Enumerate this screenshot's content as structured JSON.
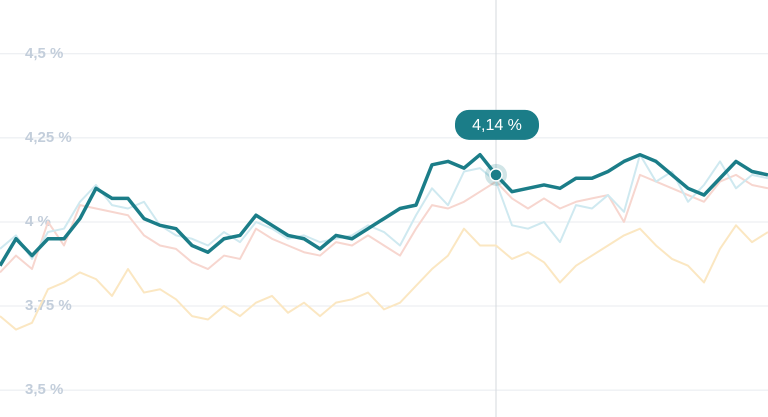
{
  "chart_data": {
    "type": "line",
    "categories": [
      null,
      null,
      null,
      null,
      null,
      null,
      null,
      null,
      null,
      null,
      null,
      null,
      null,
      null,
      null,
      null,
      null,
      null,
      null,
      null,
      null,
      null,
      null,
      null,
      null,
      null,
      null,
      null,
      null,
      null,
      null,
      null,
      null,
      null,
      null,
      null,
      null,
      null,
      null,
      null,
      null,
      null,
      null,
      null,
      null,
      null,
      null,
      null,
      null
    ],
    "series": [
      {
        "color": "#1b7d88",
        "values": [
          3.87,
          3.95,
          3.9,
          3.95,
          3.95,
          4.01,
          4.1,
          4.07,
          4.07,
          4.01,
          3.99,
          3.98,
          3.93,
          3.91,
          3.95,
          3.96,
          4.02,
          3.99,
          3.96,
          3.95,
          3.92,
          3.96,
          3.95,
          3.98,
          4.01,
          4.04,
          4.05,
          4.17,
          4.18,
          4.16,
          4.2,
          4.14,
          4.09,
          4.1,
          4.11,
          4.1,
          4.13,
          4.13,
          4.15,
          4.18,
          4.2,
          4.18,
          4.14,
          4.1,
          4.08,
          4.13,
          4.18,
          4.15,
          4.14
        ],
        "value_labels": [
          null,
          null,
          null,
          null,
          null,
          null,
          null,
          null,
          null,
          null,
          null,
          null,
          null,
          null,
          null,
          null,
          null,
          null,
          null,
          null,
          null,
          null,
          null,
          null,
          null,
          null,
          null,
          null,
          null,
          null,
          null,
          "4,14 %",
          null,
          null,
          null,
          null,
          null,
          null,
          null,
          null,
          null,
          null,
          null,
          null,
          null,
          null,
          null,
          null,
          null
        ]
      },
      {
        "color": "#cfe9f0",
        "values": [
          3.92,
          3.96,
          3.89,
          3.97,
          3.98,
          4.06,
          4.11,
          4.05,
          4.04,
          4.06,
          3.99,
          3.96,
          3.95,
          3.93,
          3.97,
          3.94,
          4.0,
          3.98,
          3.95,
          3.96,
          3.94,
          3.95,
          3.96,
          3.99,
          3.97,
          3.93,
          4.02,
          4.1,
          4.05,
          4.15,
          4.16,
          4.12,
          3.99,
          3.98,
          4.0,
          3.94,
          4.05,
          4.04,
          4.08,
          4.03,
          4.2,
          4.12,
          4.15,
          4.06,
          4.11,
          4.18,
          4.1,
          4.14,
          4.13
        ]
      },
      {
        "color": "#f7d6cf",
        "values": [
          3.85,
          3.9,
          3.86,
          4.0,
          3.93,
          4.05,
          4.04,
          4.03,
          4.02,
          3.96,
          3.93,
          3.92,
          3.88,
          3.86,
          3.9,
          3.89,
          3.98,
          3.95,
          3.93,
          3.91,
          3.9,
          3.94,
          3.93,
          3.96,
          3.93,
          3.9,
          3.98,
          4.05,
          4.04,
          4.06,
          4.09,
          4.12,
          4.07,
          4.04,
          4.07,
          4.04,
          4.06,
          4.07,
          4.08,
          4.0,
          4.14,
          4.12,
          4.1,
          4.08,
          4.06,
          4.12,
          4.14,
          4.11,
          4.1
        ]
      },
      {
        "color": "#fbe7c2",
        "values": [
          3.72,
          3.68,
          3.7,
          3.8,
          3.82,
          3.85,
          3.83,
          3.78,
          3.86,
          3.79,
          3.8,
          3.77,
          3.72,
          3.71,
          3.75,
          3.72,
          3.76,
          3.78,
          3.73,
          3.76,
          3.72,
          3.76,
          3.77,
          3.79,
          3.74,
          3.76,
          3.81,
          3.86,
          3.9,
          3.98,
          3.93,
          3.93,
          3.89,
          3.91,
          3.88,
          3.82,
          3.87,
          3.9,
          3.93,
          3.96,
          3.98,
          3.93,
          3.89,
          3.87,
          3.82,
          3.92,
          3.99,
          3.94,
          3.97
        ]
      }
    ],
    "ylim": [
      3.42,
      4.66
    ],
    "yticks": [
      {
        "value": 3.5,
        "label": "3,5 %"
      },
      {
        "value": 3.75,
        "label": "3,75 %"
      },
      {
        "value": 4,
        "label": "4 %"
      },
      {
        "value": 4.25,
        "label": "4,25 %"
      },
      {
        "value": 4.5,
        "label": "4,5 %"
      }
    ],
    "grid": true
  }
}
